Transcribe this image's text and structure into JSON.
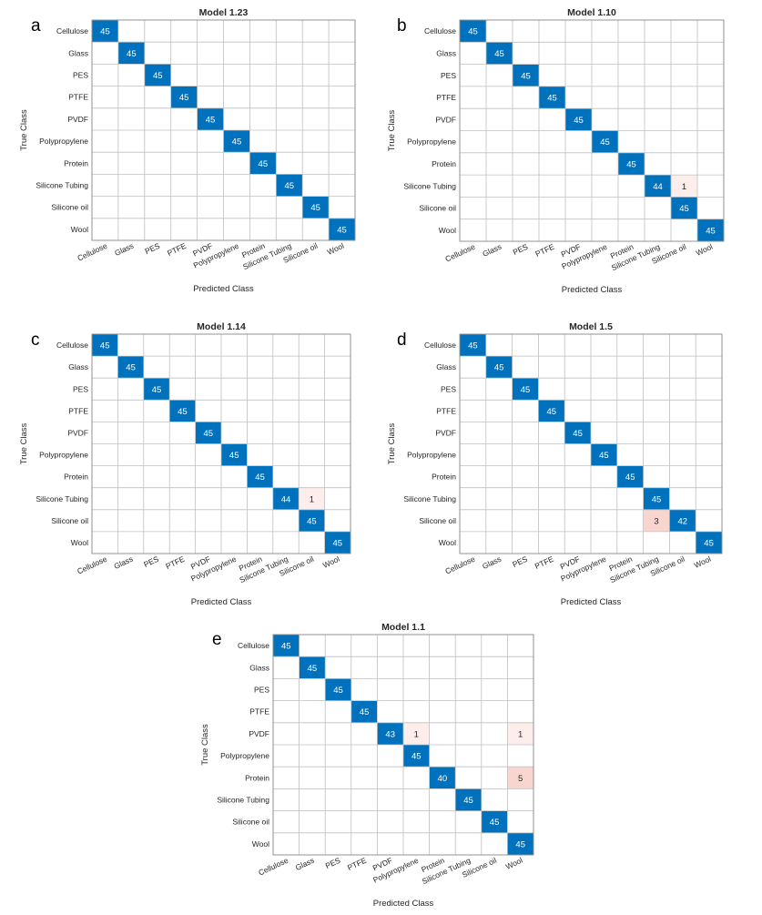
{
  "chart_data": [
    {
      "type": "heatmap",
      "panel_letter": "a",
      "title": "Model 1.23",
      "xlabel": "Predicted Class",
      "ylabel": "True Class",
      "classes": [
        "Cellulose",
        "Glass",
        "PES",
        "PTFE",
        "PVDF",
        "Polypropylene",
        "Protein",
        "Silicone Tubing",
        "Silicone oil",
        "Wool"
      ],
      "cells": [
        {
          "true": 0,
          "pred": 0,
          "value": 45
        },
        {
          "true": 1,
          "pred": 1,
          "value": 45
        },
        {
          "true": 2,
          "pred": 2,
          "value": 45
        },
        {
          "true": 3,
          "pred": 3,
          "value": 45
        },
        {
          "true": 4,
          "pred": 4,
          "value": 45
        },
        {
          "true": 5,
          "pred": 5,
          "value": 45
        },
        {
          "true": 6,
          "pred": 6,
          "value": 45
        },
        {
          "true": 7,
          "pred": 7,
          "value": 45
        },
        {
          "true": 8,
          "pred": 8,
          "value": 45
        },
        {
          "true": 9,
          "pred": 9,
          "value": 45
        }
      ]
    },
    {
      "type": "heatmap",
      "panel_letter": "b",
      "title": "Model 1.10",
      "xlabel": "Predicted Class",
      "ylabel": "True Class",
      "classes": [
        "Cellulose",
        "Glass",
        "PES",
        "PTFE",
        "PVDF",
        "Polypropylene",
        "Protein",
        "Silicone Tubing",
        "Silicone oil",
        "Wool"
      ],
      "cells": [
        {
          "true": 0,
          "pred": 0,
          "value": 45
        },
        {
          "true": 1,
          "pred": 1,
          "value": 45
        },
        {
          "true": 2,
          "pred": 2,
          "value": 45
        },
        {
          "true": 3,
          "pred": 3,
          "value": 45
        },
        {
          "true": 4,
          "pred": 4,
          "value": 45
        },
        {
          "true": 5,
          "pred": 5,
          "value": 45
        },
        {
          "true": 6,
          "pred": 6,
          "value": 45
        },
        {
          "true": 7,
          "pred": 7,
          "value": 44
        },
        {
          "true": 7,
          "pred": 8,
          "value": 1
        },
        {
          "true": 8,
          "pred": 8,
          "value": 45
        },
        {
          "true": 9,
          "pred": 9,
          "value": 45
        }
      ]
    },
    {
      "type": "heatmap",
      "panel_letter": "c",
      "title": "Model 1.14",
      "xlabel": "Predicted Class",
      "ylabel": "True Class",
      "classes": [
        "Cellulose",
        "Glass",
        "PES",
        "PTFE",
        "PVDF",
        "Polypropylene",
        "Protein",
        "Silicone Tubing",
        "Silicone oil",
        "Wool"
      ],
      "cells": [
        {
          "true": 0,
          "pred": 0,
          "value": 45
        },
        {
          "true": 1,
          "pred": 1,
          "value": 45
        },
        {
          "true": 2,
          "pred": 2,
          "value": 45
        },
        {
          "true": 3,
          "pred": 3,
          "value": 45
        },
        {
          "true": 4,
          "pred": 4,
          "value": 45
        },
        {
          "true": 5,
          "pred": 5,
          "value": 45
        },
        {
          "true": 6,
          "pred": 6,
          "value": 45
        },
        {
          "true": 7,
          "pred": 7,
          "value": 44
        },
        {
          "true": 7,
          "pred": 8,
          "value": 1
        },
        {
          "true": 8,
          "pred": 8,
          "value": 45
        },
        {
          "true": 9,
          "pred": 9,
          "value": 45
        }
      ]
    },
    {
      "type": "heatmap",
      "panel_letter": "d",
      "title": "Model 1.5",
      "xlabel": "Predicted Class",
      "ylabel": "True Class",
      "classes": [
        "Cellulose",
        "Glass",
        "PES",
        "PTFE",
        "PVDF",
        "Polypropylene",
        "Protein",
        "Silicone Tubing",
        "Silicone oil",
        "Wool"
      ],
      "cells": [
        {
          "true": 0,
          "pred": 0,
          "value": 45
        },
        {
          "true": 1,
          "pred": 1,
          "value": 45
        },
        {
          "true": 2,
          "pred": 2,
          "value": 45
        },
        {
          "true": 3,
          "pred": 3,
          "value": 45
        },
        {
          "true": 4,
          "pred": 4,
          "value": 45
        },
        {
          "true": 5,
          "pred": 5,
          "value": 45
        },
        {
          "true": 6,
          "pred": 6,
          "value": 45
        },
        {
          "true": 7,
          "pred": 7,
          "value": 45
        },
        {
          "true": 8,
          "pred": 7,
          "value": 3
        },
        {
          "true": 8,
          "pred": 8,
          "value": 42
        },
        {
          "true": 9,
          "pred": 9,
          "value": 45
        }
      ]
    },
    {
      "type": "heatmap",
      "panel_letter": "e",
      "title": "Model 1.1",
      "xlabel": "Predicted Class",
      "ylabel": "True Class",
      "classes": [
        "Cellulose",
        "Glass",
        "PES",
        "PTFE",
        "PVDF",
        "Polypropylene",
        "Protein",
        "Silicone Tubing",
        "Silicone oil",
        "Wool"
      ],
      "cells": [
        {
          "true": 0,
          "pred": 0,
          "value": 45
        },
        {
          "true": 1,
          "pred": 1,
          "value": 45
        },
        {
          "true": 2,
          "pred": 2,
          "value": 45
        },
        {
          "true": 3,
          "pred": 3,
          "value": 45
        },
        {
          "true": 4,
          "pred": 4,
          "value": 43
        },
        {
          "true": 4,
          "pred": 5,
          "value": 1
        },
        {
          "true": 4,
          "pred": 9,
          "value": 1
        },
        {
          "true": 5,
          "pred": 5,
          "value": 45
        },
        {
          "true": 6,
          "pred": 6,
          "value": 40
        },
        {
          "true": 6,
          "pred": 9,
          "value": 5
        },
        {
          "true": 7,
          "pred": 7,
          "value": 45
        },
        {
          "true": 8,
          "pred": 8,
          "value": 45
        },
        {
          "true": 9,
          "pred": 9,
          "value": 45
        }
      ]
    }
  ],
  "colors": {
    "diagonal": "#0072bd",
    "off_diagonal_light": "#fdeeec",
    "off_diagonal_strong": "#f8d5cf",
    "grid": "#bfbfbf",
    "text_dark": "#262626",
    "text_on_blue": "#ffffff"
  }
}
